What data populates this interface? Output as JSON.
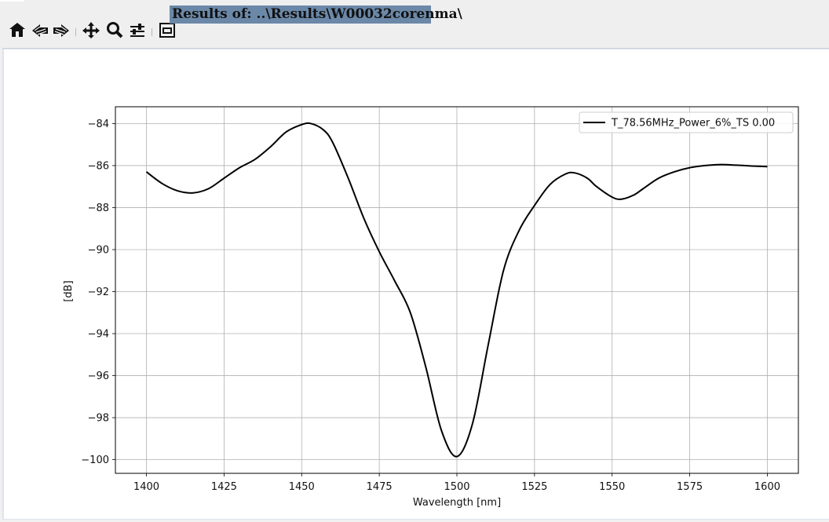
{
  "window": {
    "title_banner": "Results of: ..\\Results\\W00032corenma\\"
  },
  "toolbar": {
    "buttons": [
      {
        "name": "home",
        "icon": "home-icon"
      },
      {
        "name": "back",
        "icon": "back-arrow-icon"
      },
      {
        "name": "forward",
        "icon": "forward-arrow-icon"
      },
      {
        "name": "pan",
        "icon": "move-icon"
      },
      {
        "name": "zoom",
        "icon": "zoom-icon"
      },
      {
        "name": "configure-subplots",
        "icon": "sliders-icon"
      },
      {
        "name": "save",
        "icon": "save-icon"
      }
    ]
  },
  "chart_data": {
    "type": "line",
    "title": "",
    "xlabel": "Wavelength [nm]",
    "ylabel": "[dB]",
    "xlim": [
      1390,
      1610
    ],
    "ylim": [
      -100.65,
      -83.2
    ],
    "xticks": [
      1400,
      1425,
      1450,
      1475,
      1500,
      1525,
      1550,
      1575,
      1600
    ],
    "yticks": [
      -84,
      -86,
      -88,
      -90,
      -92,
      -94,
      -96,
      -98,
      -100
    ],
    "grid": true,
    "legend": "top-right",
    "series": [
      {
        "name": "T_78.56MHz_Power_6%_TS 0.00",
        "color": "#000000",
        "x": [
          1400,
          1405,
          1410,
          1415,
          1420,
          1425,
          1430,
          1435,
          1440,
          1445,
          1450,
          1453,
          1457,
          1460,
          1465,
          1470,
          1475,
          1480,
          1485,
          1490,
          1495,
          1500,
          1505,
          1510,
          1515,
          1520,
          1525,
          1530,
          1535,
          1538,
          1542,
          1545,
          1550,
          1553,
          1557,
          1560,
          1565,
          1570,
          1575,
          1580,
          1585,
          1590,
          1595,
          1600
        ],
        "y": [
          -86.3,
          -86.85,
          -87.2,
          -87.3,
          -87.1,
          -86.6,
          -86.1,
          -85.7,
          -85.1,
          -84.4,
          -84.05,
          -84.0,
          -84.3,
          -84.9,
          -86.6,
          -88.5,
          -90.1,
          -91.5,
          -93.0,
          -95.6,
          -98.6,
          -99.85,
          -98.3,
          -94.6,
          -91.0,
          -89.1,
          -87.9,
          -86.9,
          -86.4,
          -86.35,
          -86.6,
          -87.0,
          -87.5,
          -87.6,
          -87.4,
          -87.1,
          -86.6,
          -86.3,
          -86.1,
          -86.0,
          -85.95,
          -85.98,
          -86.02,
          -86.05
        ]
      }
    ]
  }
}
